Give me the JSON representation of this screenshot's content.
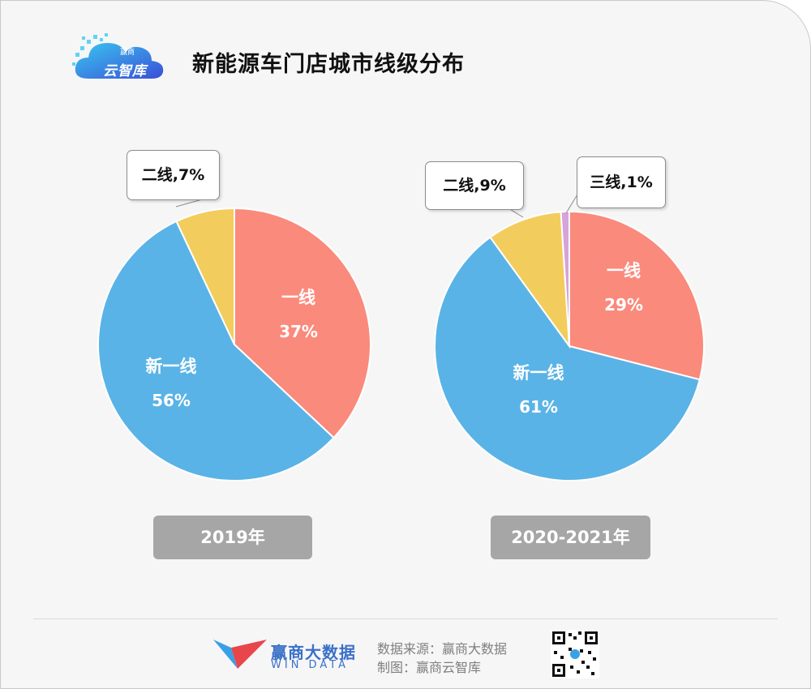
{
  "header": {
    "logo_text": "云智库",
    "logo_sub": "赢商",
    "title": "新能源车门店城市线级分布"
  },
  "chart_data": [
    {
      "type": "pie",
      "year_label": "2019年",
      "slices": [
        {
          "label": "一线",
          "value": 37,
          "value_label": "37%",
          "color": "#fa8a7c"
        },
        {
          "label": "新一线",
          "value": 56,
          "value_label": "56%",
          "color": "#5ab3e6"
        },
        {
          "label": "二线",
          "value": 7,
          "value_label": "7%",
          "color": "#f2cd5d",
          "callout": "二线,7%"
        }
      ]
    },
    {
      "type": "pie",
      "year_label": "2020-2021年",
      "slices": [
        {
          "label": "一线",
          "value": 29,
          "value_label": "29%",
          "color": "#fa8a7c"
        },
        {
          "label": "新一线",
          "value": 61,
          "value_label": "61%",
          "color": "#5ab3e6"
        },
        {
          "label": "二线",
          "value": 9,
          "value_label": "9%",
          "color": "#f2cd5d",
          "callout": "二线,9%"
        },
        {
          "label": "三线",
          "value": 1,
          "value_label": "1%",
          "color": "#d7a3d9",
          "callout": "三线,1%"
        }
      ]
    }
  ],
  "watermark": "赢商云智库",
  "footer": {
    "brand_cn": "赢商大数据",
    "brand_en": "WIN DATA",
    "source": "数据来源：赢商大数据",
    "made_by": "制图：赢商云智库"
  }
}
